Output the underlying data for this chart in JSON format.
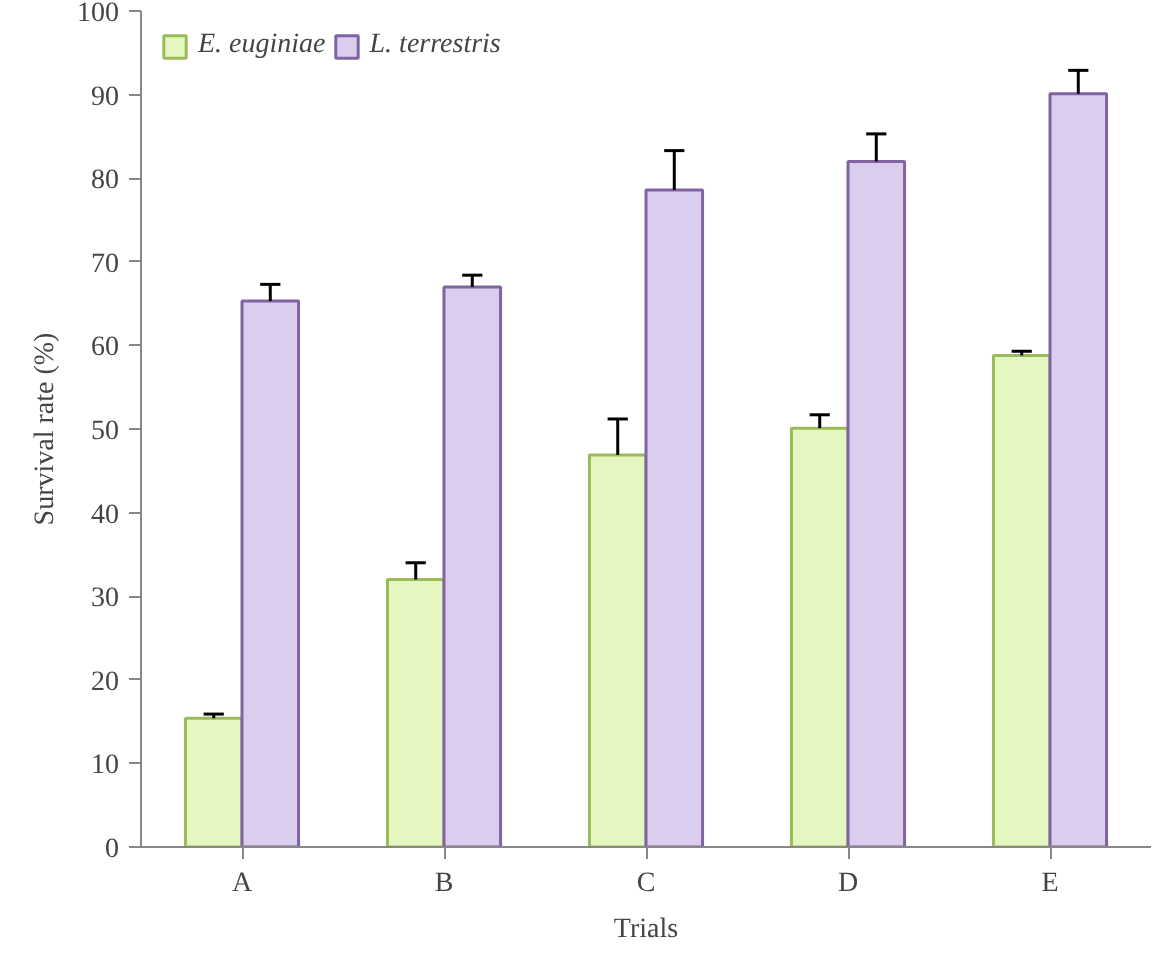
{
  "chart_data": {
    "type": "bar",
    "xlabel": "Trials",
    "ylabel": "Survival rate (%)",
    "categories": [
      "A",
      "B",
      "C",
      "D",
      "E"
    ],
    "series": [
      {
        "name": "E. euginiae",
        "color": "#e4f7c0",
        "values": [
          15.4,
          32.0,
          46.9,
          50.1,
          58.8
        ],
        "errors": [
          [
            15.4,
            15.9
          ],
          [
            32.0,
            34.0
          ],
          [
            46.9,
            51.2
          ],
          [
            50.1,
            51.7
          ],
          [
            58.8,
            59.3
          ]
        ]
      },
      {
        "name": "L. terrestris",
        "color": "#dacdee",
        "values": [
          65.3,
          67.0,
          78.6,
          82.0,
          90.1
        ],
        "errors": [
          [
            65.3,
            67.3
          ],
          [
            67.0,
            68.4
          ],
          [
            78.6,
            83.3
          ],
          [
            82.0,
            85.3
          ],
          [
            90.1,
            92.9
          ]
        ]
      }
    ],
    "ylim": [
      0,
      100
    ],
    "yticks": [
      0,
      10,
      20,
      30,
      40,
      50,
      60,
      70,
      80,
      90,
      100
    ],
    "grid": false,
    "legend": "top left"
  }
}
